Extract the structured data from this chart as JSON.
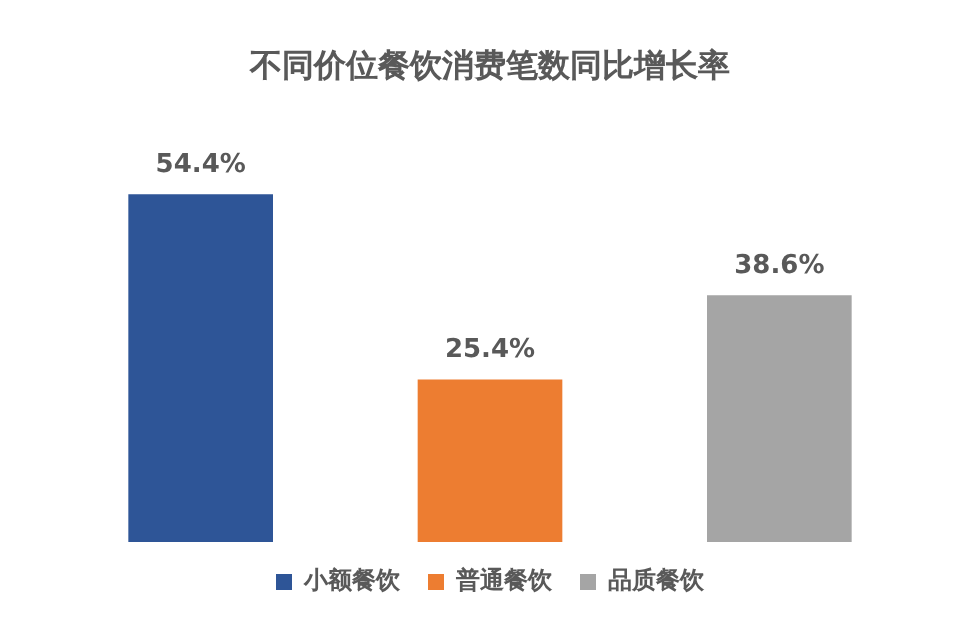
{
  "chart_data": {
    "type": "bar",
    "title": "不同价位餐饮消费笔数同比增长率",
    "categories": [
      null,
      null,
      null
    ],
    "stacked": true,
    "series": [
      {
        "name": "小额餐饮",
        "color": "#2e5597",
        "values": [
          54.4,
          null,
          null
        ],
        "value_labels": [
          "54.4%",
          null,
          null
        ]
      },
      {
        "name": "普通餐饮",
        "color": "#ed7d31",
        "values": [
          null,
          25.4,
          null
        ],
        "value_labels": [
          null,
          "25.4%",
          null
        ]
      },
      {
        "name": "品质餐饮",
        "color": "#a5a5a5",
        "values": [
          null,
          null,
          38.6
        ],
        "value_labels": [
          null,
          null,
          "38.6%"
        ]
      }
    ],
    "legend": "bottom",
    "grid": false,
    "tick_labels": false
  }
}
